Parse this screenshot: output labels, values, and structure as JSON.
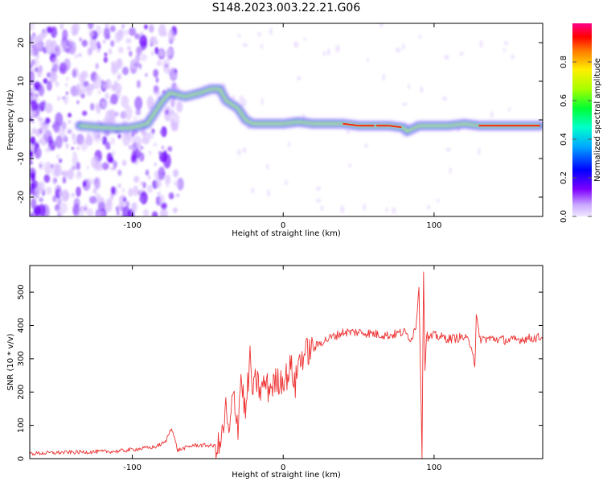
{
  "title": "S148.2023.003.22.21.G06",
  "colors": {
    "snr_line": "#ee3333",
    "colorbar": [
      "#e5ccff",
      "#7f00ff",
      "#0000ff",
      "#00d5ff",
      "#00ff55",
      "#a0ff00",
      "#ffee00",
      "#ff6600",
      "#ff0000",
      "#ff0088"
    ]
  },
  "chart_data": [
    {
      "type": "heatmap",
      "xlabel": "Height of straight line (km)",
      "ylabel": "Frequency (Hz)",
      "xlim": [
        -168,
        172
      ],
      "ylim": [
        -25,
        25
      ],
      "x_ticks": [
        "-100",
        "0",
        "100"
      ],
      "x_tick_values": [
        -100,
        0,
        100
      ],
      "y_ticks": [
        "-20",
        "-10",
        "0",
        "10",
        "20"
      ],
      "y_tick_values": [
        -20,
        -10,
        0,
        10,
        20
      ],
      "ridge": {
        "x": [
          -135,
          -120,
          -110,
          -100,
          -90,
          -85,
          -80,
          -75,
          -65,
          -55,
          -48,
          -42,
          -38,
          -30,
          -25,
          -20,
          -10,
          0,
          10,
          20,
          30,
          40,
          50,
          60,
          70,
          80,
          82,
          90,
          100,
          110,
          120,
          130,
          140,
          150,
          160,
          170
        ],
        "y": [
          -1.5,
          -2,
          -2.2,
          -2,
          -1,
          2,
          5,
          7,
          6,
          7,
          8,
          8,
          5,
          3,
          0,
          -1,
          -1,
          -1,
          -0.5,
          -1,
          -1,
          -1,
          -1.5,
          -1.5,
          -1.5,
          -2,
          -3,
          -1.5,
          -1.5,
          -1.5,
          -1,
          -1.5,
          -1.5,
          -1.5,
          -1.5,
          -1.5
        ]
      },
      "colorbar": {
        "label": "Normalized spectral amplitude",
        "range": [
          0,
          1
        ],
        "ticks": [
          "0.0",
          "0.2",
          "0.4",
          "0.6",
          "0.8"
        ],
        "tick_values": [
          0,
          0.2,
          0.4,
          0.6,
          0.8
        ]
      }
    },
    {
      "type": "line",
      "xlabel": "Height of straight line (km)",
      "ylabel": "SNR (10 * v/v)",
      "xlim": [
        -168,
        172
      ],
      "ylim": [
        0,
        580
      ],
      "x_ticks": [
        "-100",
        "0",
        "100"
      ],
      "x_tick_values": [
        -100,
        0,
        100
      ],
      "y_ticks": [
        "0",
        "100",
        "200",
        "300",
        "400",
        "500"
      ],
      "y_tick_values": [
        0,
        100,
        200,
        300,
        400,
        500
      ],
      "series": [
        {
          "x": [
            -168,
            -150,
            -130,
            -110,
            -95,
            -85,
            -78,
            -74,
            -70,
            -60,
            -50,
            -42,
            -40,
            -38,
            -36,
            -33,
            -30,
            -28,
            -25,
            -22,
            -20,
            -18,
            -15,
            -12,
            -10,
            -5,
            0,
            3,
            5,
            8,
            10,
            15,
            20,
            25,
            30,
            35,
            40,
            50,
            60,
            70,
            80,
            85,
            88,
            90,
            92,
            93,
            94,
            95,
            96,
            100,
            110,
            120,
            125,
            127,
            128,
            130,
            140,
            150,
            160,
            172
          ],
          "y": [
            15,
            18,
            20,
            22,
            30,
            35,
            50,
            95,
            25,
            40,
            40,
            35,
            80,
            150,
            60,
            200,
            100,
            250,
            130,
            300,
            190,
            240,
            200,
            230,
            210,
            230,
            240,
            250,
            280,
            220,
            290,
            320,
            330,
            350,
            360,
            370,
            380,
            380,
            375,
            370,
            380,
            360,
            400,
            520,
            10,
            570,
            260,
            380,
            360,
            370,
            360,
            365,
            340,
            280,
            430,
            360,
            360,
            355,
            360,
            365
          ]
        }
      ]
    }
  ]
}
